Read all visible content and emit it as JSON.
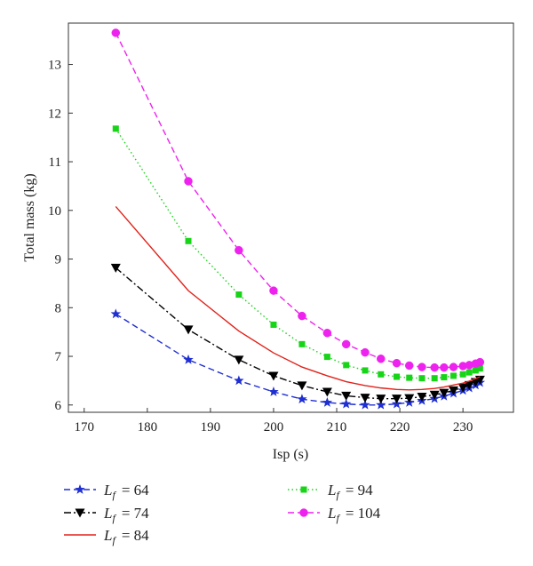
{
  "chart_data": {
    "type": "line",
    "title": "",
    "xlabel": "Isp (s)",
    "ylabel": "Total mass (kg)",
    "xlim": [
      167.5,
      238
    ],
    "ylim": [
      5.85,
      13.85
    ],
    "xticks": [
      170,
      180,
      190,
      200,
      210,
      220,
      230
    ],
    "yticks": [
      6,
      7,
      8,
      9,
      10,
      11,
      12,
      13
    ],
    "grid": false,
    "legend_placement": "below",
    "series": [
      {
        "name": "Lf = 64",
        "legend_prefix": "L",
        "legend_subscript": "f",
        "legend_value": "= 64",
        "color": "#1f2fd1",
        "line_style": "dashed",
        "marker": "star",
        "x": [
          175,
          186.5,
          194.5,
          200,
          204.5,
          208.5,
          211.5,
          214.5,
          217,
          219.5,
          221.5,
          223.5,
          225.5,
          227,
          228.5,
          230,
          231,
          232,
          232.7
        ],
        "y": [
          7.87,
          6.93,
          6.5,
          6.27,
          6.12,
          6.05,
          6.02,
          6.0,
          6.0,
          6.02,
          6.05,
          6.09,
          6.13,
          6.18,
          6.24,
          6.3,
          6.35,
          6.41,
          6.46
        ]
      },
      {
        "name": "Lf = 74",
        "legend_prefix": "L",
        "legend_subscript": "f",
        "legend_value": "= 74",
        "color": "#000000",
        "line_style": "dashdot",
        "marker": "triangle-down",
        "x": [
          175,
          186.5,
          194.5,
          200,
          204.5,
          208.5,
          211.5,
          214.5,
          217,
          219.5,
          221.5,
          223.5,
          225.5,
          227,
          228.5,
          230,
          231,
          232,
          232.7
        ],
        "y": [
          8.82,
          7.55,
          6.93,
          6.6,
          6.4,
          6.27,
          6.19,
          6.15,
          6.13,
          6.13,
          6.14,
          6.17,
          6.21,
          6.25,
          6.3,
          6.36,
          6.41,
          6.47,
          6.52
        ]
      },
      {
        "name": "Lf = 84",
        "legend_prefix": "L",
        "legend_subscript": "f",
        "legend_value": "= 84",
        "color": "#e0221a",
        "line_style": "solid",
        "marker": "none",
        "x": [
          175,
          186.5,
          194.5,
          200,
          204.5,
          208.5,
          211.5,
          214.5,
          217,
          219.5,
          221.5,
          223.5,
          225.5,
          227,
          228.5,
          230,
          231,
          232,
          232.7
        ],
        "y": [
          10.08,
          8.35,
          7.52,
          7.07,
          6.78,
          6.6,
          6.48,
          6.4,
          6.35,
          6.32,
          6.31,
          6.32,
          6.34,
          6.37,
          6.41,
          6.45,
          6.49,
          6.54,
          6.58
        ]
      },
      {
        "name": "Lf = 94",
        "legend_prefix": "L",
        "legend_subscript": "f",
        "legend_value": "= 94",
        "color": "#18d418",
        "line_style": "dotted",
        "marker": "square",
        "x": [
          175,
          186.5,
          194.5,
          200,
          204.5,
          208.5,
          211.5,
          214.5,
          217,
          219.5,
          221.5,
          223.5,
          225.5,
          227,
          228.5,
          230,
          231,
          232,
          232.7
        ],
        "y": [
          11.68,
          9.37,
          8.27,
          7.65,
          7.25,
          6.99,
          6.82,
          6.71,
          6.63,
          6.58,
          6.56,
          6.55,
          6.55,
          6.57,
          6.6,
          6.63,
          6.67,
          6.71,
          6.75
        ]
      },
      {
        "name": "Lf = 104",
        "legend_prefix": "L",
        "legend_subscript": "f",
        "legend_value": "= 104",
        "color": "#ee22ee",
        "line_style": "dashed",
        "marker": "circle",
        "x": [
          175,
          186.5,
          194.5,
          200,
          204.5,
          208.5,
          211.5,
          214.5,
          217,
          219.5,
          221.5,
          223.5,
          225.5,
          227,
          228.5,
          230,
          231,
          232,
          232.7
        ],
        "y": [
          13.65,
          10.6,
          9.18,
          8.35,
          7.83,
          7.48,
          7.25,
          7.08,
          6.95,
          6.86,
          6.81,
          6.78,
          6.77,
          6.77,
          6.78,
          6.8,
          6.82,
          6.85,
          6.88
        ]
      }
    ]
  }
}
